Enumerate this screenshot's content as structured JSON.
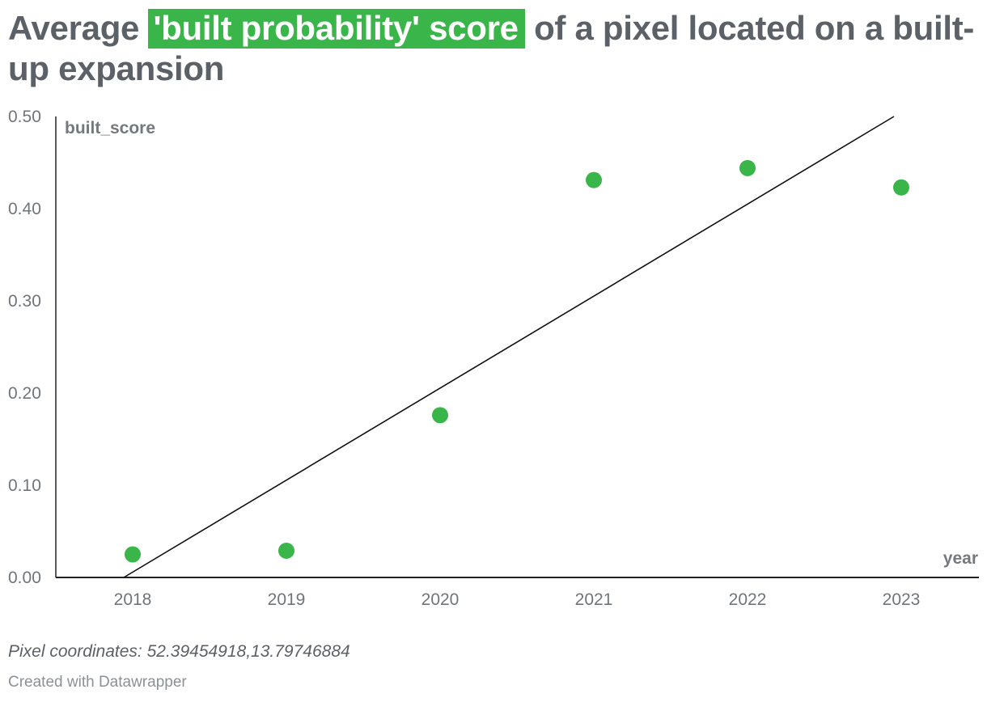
{
  "headline": {
    "before": "Average",
    "highlight": "'built probability' score",
    "after": "of a pixel located on a built-up expansion",
    "highlight_color": "#3ab54a"
  },
  "chart_data": {
    "type": "scatter",
    "x": [
      "2018",
      "2019",
      "2020",
      "2021",
      "2022",
      "2023"
    ],
    "y": [
      0.025,
      0.029,
      0.176,
      0.431,
      0.444,
      0.423
    ],
    "ylabel": "built_score",
    "xlabel": "year",
    "ylim": [
      0,
      0.5
    ],
    "y_ticks": [
      "0.00",
      "0.10",
      "0.20",
      "0.30",
      "0.40",
      "0.50"
    ],
    "grid": false,
    "marker_color": "#3ab54a",
    "trendline": {
      "color": "#111111",
      "start": {
        "x": "2018",
        "y": 0.0
      },
      "end": {
        "x": "2023",
        "y": 0.5
      }
    }
  },
  "notes": "Pixel coordinates: 52.39454918,13.79746884",
  "credit": "Created with Datawrapper"
}
